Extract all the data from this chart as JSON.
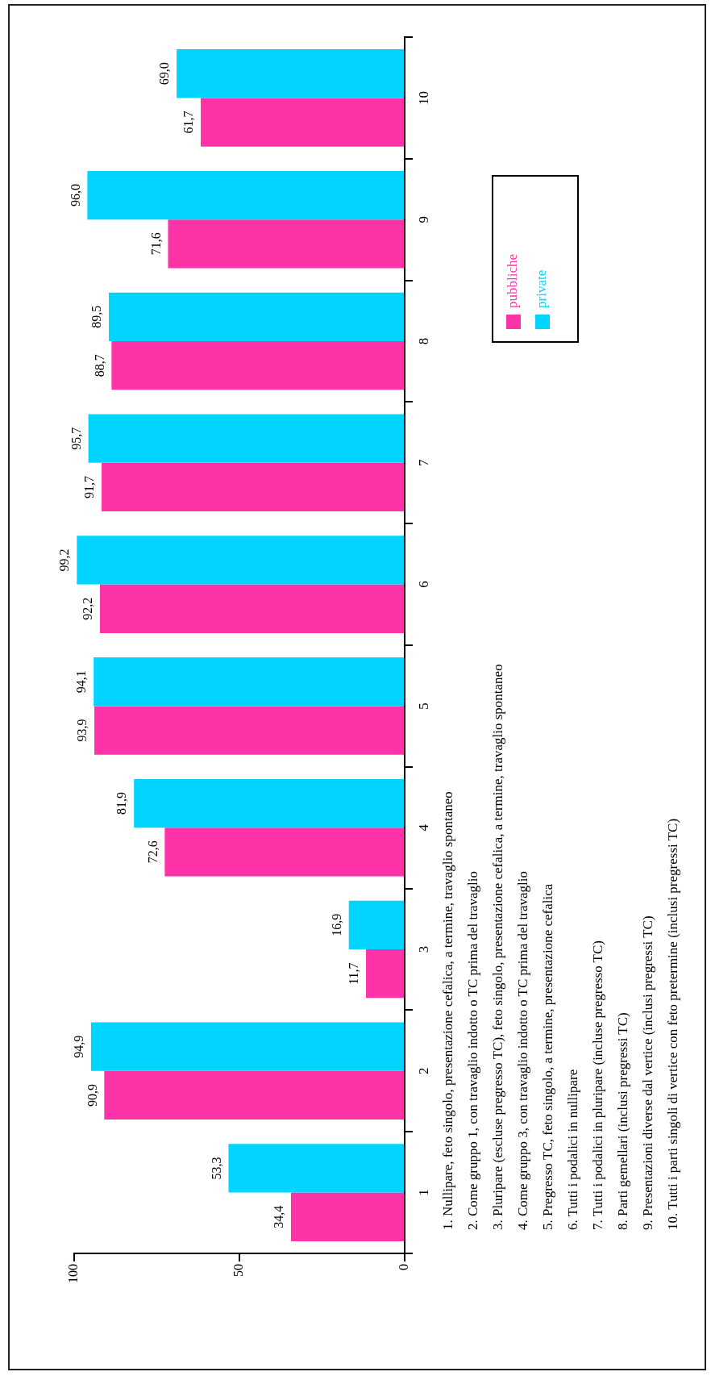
{
  "chart_data": {
    "type": "bar",
    "orientation": "horizontal",
    "categories": [
      "10",
      "9",
      "8",
      "7",
      "6",
      "5",
      "4",
      "3",
      "2",
      "1"
    ],
    "series": [
      {
        "name": "private",
        "color": "#00d4ff",
        "values": [
          69.0,
          96.0,
          89.5,
          95.7,
          99.2,
          94.1,
          81.9,
          16.9,
          94.9,
          53.3
        ],
        "value_labels": [
          "69,0",
          "96,0",
          "89,5",
          "95,7",
          "99,2",
          "94,1",
          "81,9",
          "16,9",
          "94,9",
          "53,3"
        ]
      },
      {
        "name": "pubbliche",
        "color": "#ff33a8",
        "values": [
          61.7,
          71.6,
          88.7,
          91.7,
          92.2,
          93.9,
          72.6,
          11.7,
          90.9,
          34.4
        ],
        "value_labels": [
          "61,7",
          "71,6",
          "88,7",
          "91,7",
          "92,2",
          "93,9",
          "72,6",
          "11,7",
          "90,9",
          "34,4"
        ]
      }
    ],
    "xlim": [
      100,
      0
    ],
    "xticks": [
      100,
      50,
      0
    ],
    "grid": false,
    "legend": "top right",
    "annotations": [
      "1. Nullipare, feto singolo, presentazione cefalica, a termine, travaglio spontaneo",
      "2. Come gruppo 1, con travaglio indotto o TC prima del travaglio",
      "3. Pluripare (escluse pregresso TC), feto singolo, presentazione cefalica, a termine, travaglio spontaneo",
      "4. Come gruppo 3, con travaglio indotto o TC prima del travaglio",
      "5. Pregresso TC, feto singolo, a termine, presentazione cefalica",
      "6. Tutti i podalici in nullipare",
      "7. Tutti i podalici in pluripare (incluse pregresso TC)",
      "8. Parti gemellari (inclusi pregressi TC)",
      "9. Presentazioni diverse dal vertice (inclusi pregressi TC)",
      "10. Tutti i parti singoli di vertice con feto pretermine (inclusi pregressi TC)"
    ]
  }
}
